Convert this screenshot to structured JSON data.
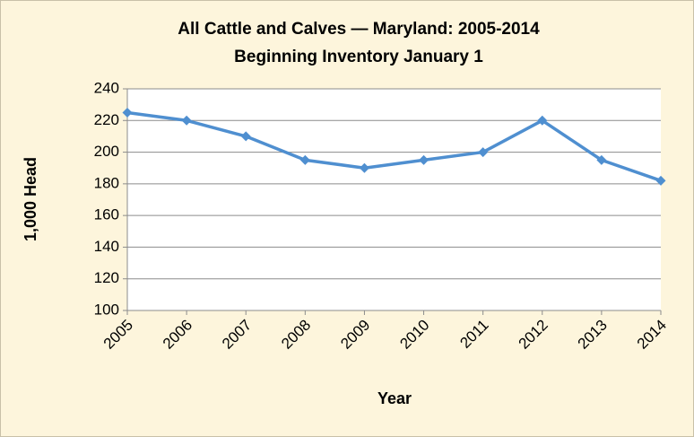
{
  "chart_data": {
    "type": "line",
    "title": "All Cattle and Calves — Maryland: 2005-2014",
    "subtitle": "Beginning Inventory January 1",
    "x_label": "Year",
    "y_label": "1,000 Head",
    "categories": [
      "2005",
      "2006",
      "2007",
      "2008",
      "2009",
      "2010",
      "2011",
      "2012",
      "2013",
      "2014"
    ],
    "values": [
      225,
      220,
      210,
      195,
      190,
      195,
      200,
      220,
      195,
      182
    ],
    "color": "#4f8fd0",
    "ylim": [
      100,
      240
    ],
    "yticks": [
      100,
      120,
      140,
      160,
      180,
      200,
      220,
      240
    ],
    "grid": true
  }
}
